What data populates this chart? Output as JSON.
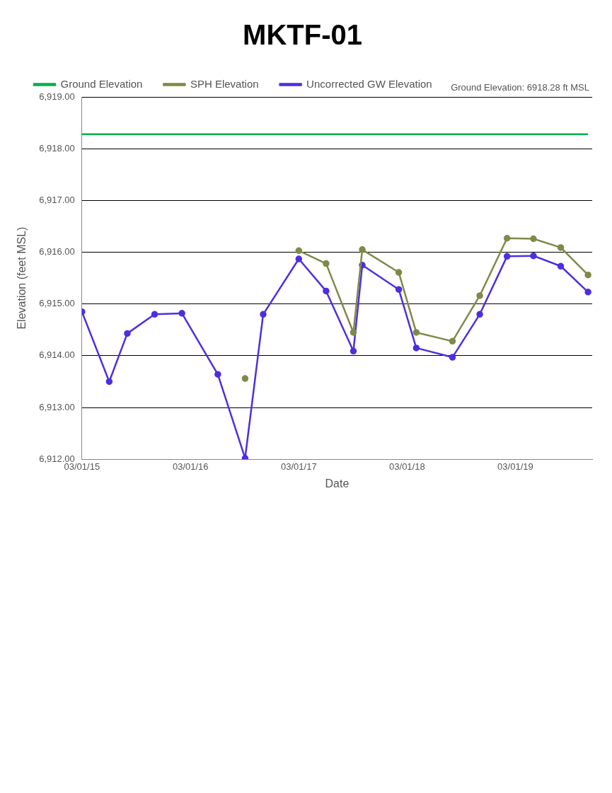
{
  "chart_data": {
    "type": "line",
    "title": "MKTF-01",
    "xlabel": "Date",
    "ylabel": "Elevation (feet MSL)",
    "annotations": [
      "Ground Elevation: 6918.28 ft MSL"
    ],
    "x": [
      "2015-03",
      "2015-06",
      "2015-08",
      "2015-11",
      "2016-02",
      "2016-06",
      "2016-09",
      "2016-11",
      "2017-03",
      "2017-06",
      "2017-09",
      "2017-10",
      "2018-02",
      "2018-04",
      "2018-08",
      "2018-11",
      "2019-02",
      "2019-05",
      "2019-08",
      "2019-11"
    ],
    "series": [
      {
        "name": "Ground Elevation",
        "color": "#00b050",
        "marker": "none",
        "x": [
          "2015-03",
          "2019-11"
        ],
        "values": [
          6918.28,
          6918.28
        ]
      },
      {
        "name": "SPH Elevation",
        "color": "#7f8a4a",
        "values": [
          null,
          null,
          null,
          null,
          null,
          null,
          6913.56,
          null,
          6916.03,
          6915.78,
          6914.45,
          6916.05,
          6915.61,
          6914.45,
          6914.28,
          6915.16,
          6916.27,
          6916.26,
          6916.09,
          6915.56
        ]
      },
      {
        "name": "Uncorrected GW Elevation",
        "color": "#4b30e0",
        "values": [
          6914.85,
          6913.5,
          6914.43,
          6914.8,
          6914.82,
          6913.64,
          6912.02,
          6914.8,
          6915.87,
          6915.25,
          6914.09,
          6915.75,
          6915.28,
          6914.15,
          6913.97,
          6914.8,
          6915.92,
          6915.93,
          6915.73,
          6915.23
        ]
      }
    ],
    "marker": "circle",
    "grid": "y",
    "legend": "top",
    "xlim": [
      "2015-03-01",
      "2019-11-15"
    ],
    "xticks": [
      {
        "value": "2015-03-01",
        "label": "03/01/15"
      },
      {
        "value": "2016-03-01",
        "label": "03/01/16"
      },
      {
        "value": "2017-03-01",
        "label": "03/01/17"
      },
      {
        "value": "2018-03-01",
        "label": "03/01/18"
      },
      {
        "value": "2019-03-01",
        "label": "03/01/19"
      }
    ],
    "ylim": [
      6912,
      6919
    ],
    "yticks": [
      {
        "value": 6912,
        "label": "6,912.00"
      },
      {
        "value": 6913,
        "label": "6,913.00"
      },
      {
        "value": 6914,
        "label": "6,914.00"
      },
      {
        "value": 6915,
        "label": "6,915.00"
      },
      {
        "value": 6916,
        "label": "6,916.00"
      },
      {
        "value": 6917,
        "label": "6,917.00"
      },
      {
        "value": 6918,
        "label": "6,918.00"
      },
      {
        "value": 6919,
        "label": "6,919.00"
      }
    ]
  }
}
